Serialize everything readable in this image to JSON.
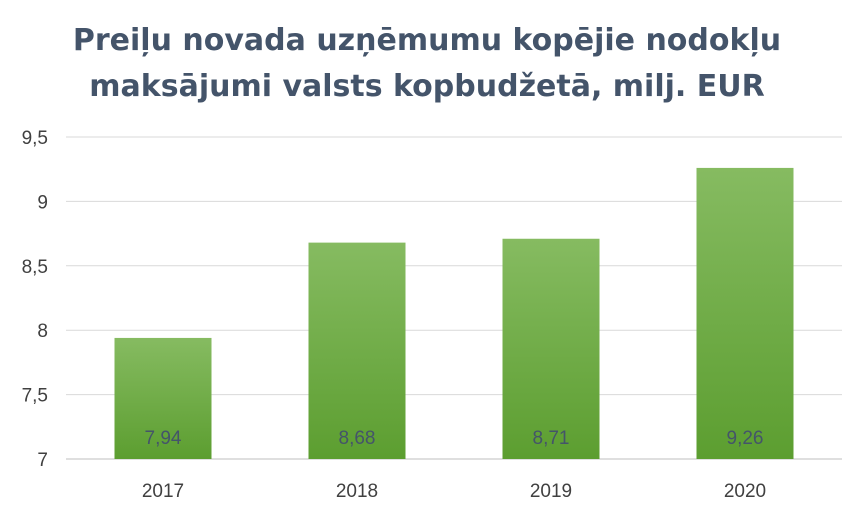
{
  "chart_data": {
    "type": "bar",
    "title_lines": [
      "Preiļu novada uzņēmumu kopējie nodokļu",
      "maksājumi valsts kopbudžetā, milj. EUR"
    ],
    "categories": [
      "2017",
      "2018",
      "2019",
      "2020"
    ],
    "values": [
      7.94,
      8.68,
      8.71,
      9.26
    ],
    "data_labels": [
      "7,94",
      "8,68",
      "8,71",
      "9,26"
    ],
    "ylim": [
      7,
      9.5
    ],
    "yticks": [
      7,
      7.5,
      8,
      8.5,
      9,
      9.5
    ],
    "ytick_labels": [
      "7",
      "7,5",
      "8",
      "8,5",
      "9",
      "9,5"
    ],
    "grid": true,
    "legend": "none",
    "colors": {
      "bar_top": "#86bb61",
      "bar_bottom": "#5c9e30",
      "title": "#44546a",
      "grid": "#d9d9d9"
    }
  }
}
